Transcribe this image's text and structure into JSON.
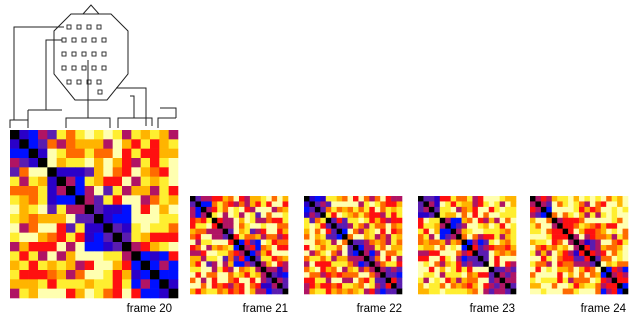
{
  "figure": {
    "frames": [
      {
        "id": 20,
        "label": "frame 20",
        "grid": 18
      },
      {
        "id": 21,
        "label": "frame 21",
        "grid": 18
      },
      {
        "id": 22,
        "label": "frame 22",
        "grid": 18
      },
      {
        "id": 23,
        "label": "frame 23",
        "grid": 18
      },
      {
        "id": 24,
        "label": "frame 24",
        "grid": 18
      }
    ],
    "colormap": [
      "#000000",
      "#2a00c8",
      "#0010ff",
      "#5a1cb0",
      "#b01464",
      "#ff1010",
      "#ff6a00",
      "#ffb400",
      "#ffee30",
      "#ffffb0"
    ],
    "electrode_layout": {
      "rows": [
        4,
        5,
        5,
        5,
        4,
        1
      ],
      "shape": "octagon-head"
    }
  }
}
